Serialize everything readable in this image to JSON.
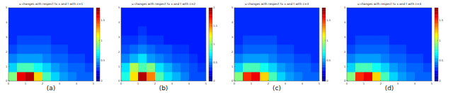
{
  "chart_data": [
    {
      "type": "heatmap",
      "title": "u changes with respect to x and t with ε=1",
      "caption": "(a)",
      "x": [
        0.25,
        0.75,
        1.25,
        1.75,
        2.25,
        2.75,
        3.25,
        3.75,
        4.25,
        4.75
      ],
      "y": [
        0.3125,
        0.9375,
        1.5625,
        2.1875,
        2.8125,
        3.4375,
        4.0625,
        4.6875
      ],
      "values": [
        [
          0.9,
          1.6,
          1.7,
          1.2,
          0.8,
          0.6,
          0.5,
          0.45,
          0.4,
          0.4
        ],
        [
          0.6,
          0.8,
          0.8,
          0.7,
          0.6,
          0.5,
          0.45,
          0.4,
          0.4,
          0.35
        ],
        [
          0.45,
          0.5,
          0.5,
          0.5,
          0.45,
          0.4,
          0.4,
          0.35,
          0.35,
          0.3
        ],
        [
          0.35,
          0.4,
          0.4,
          0.4,
          0.4,
          0.35,
          0.35,
          0.3,
          0.3,
          0.3
        ],
        [
          0.3,
          0.35,
          0.35,
          0.35,
          0.35,
          0.3,
          0.3,
          0.3,
          0.3,
          0.3
        ],
        [
          0.3,
          0.3,
          0.3,
          0.3,
          0.3,
          0.3,
          0.3,
          0.3,
          0.3,
          0.3
        ],
        [
          0.3,
          0.3,
          0.3,
          0.3,
          0.3,
          0.3,
          0.3,
          0.3,
          0.3,
          0.3
        ],
        [
          0.3,
          0.3,
          0.3,
          0.3,
          0.3,
          0.3,
          0.3,
          0.3,
          0.3,
          0.3
        ]
      ],
      "xlim": [
        0,
        5
      ],
      "ylim": [
        0,
        5
      ],
      "xticks": [
        0,
        1,
        2,
        3,
        4,
        5
      ],
      "yticks": [
        0,
        1,
        2,
        3,
        4,
        5
      ],
      "colorbar_range": [
        0,
        1.8
      ],
      "colorbar_ticks": [
        0,
        0.5,
        1,
        1.5
      ]
    },
    {
      "type": "heatmap",
      "title": "u changes with respect to x and t with ε=2",
      "caption": "(b)",
      "x": [
        0.25,
        0.75,
        1.25,
        1.75,
        2.25,
        2.75,
        3.25,
        3.75,
        4.25,
        4.75
      ],
      "y": [
        0.3125,
        0.9375,
        1.5625,
        2.1875,
        2.8125,
        3.4375,
        4.0625,
        4.6875
      ],
      "values": [
        [
          0.8,
          1.3,
          1.9,
          1.5,
          0.9,
          0.7,
          0.6,
          0.5,
          0.4,
          0.4
        ],
        [
          0.7,
          1.1,
          0.9,
          1.0,
          0.7,
          0.6,
          0.5,
          0.45,
          0.4,
          0.35
        ],
        [
          0.5,
          0.6,
          0.7,
          0.55,
          0.5,
          0.45,
          0.4,
          0.4,
          0.35,
          0.3
        ],
        [
          0.4,
          0.45,
          0.5,
          0.45,
          0.4,
          0.4,
          0.35,
          0.35,
          0.3,
          0.3
        ],
        [
          0.35,
          0.35,
          0.4,
          0.35,
          0.35,
          0.3,
          0.3,
          0.3,
          0.3,
          0.3
        ],
        [
          0.3,
          0.3,
          0.35,
          0.3,
          0.3,
          0.3,
          0.3,
          0.3,
          0.3,
          0.3
        ],
        [
          0.3,
          0.3,
          0.3,
          0.3,
          0.3,
          0.3,
          0.3,
          0.3,
          0.3,
          0.3
        ],
        [
          0.3,
          0.3,
          0.3,
          0.3,
          0.3,
          0.3,
          0.3,
          0.3,
          0.3,
          0.3
        ]
      ],
      "xlim": [
        0,
        5
      ],
      "ylim": [
        0,
        5
      ],
      "xticks": [
        0,
        1,
        2,
        3,
        4,
        5
      ],
      "yticks": [
        0,
        1,
        2,
        3,
        4,
        5
      ],
      "colorbar_range": [
        0,
        2
      ],
      "colorbar_ticks": [
        0,
        0.5,
        1,
        1.5,
        2
      ]
    },
    {
      "type": "heatmap",
      "title": "u changes with respect to x and t with ε=3",
      "caption": "(c)",
      "x": [
        0.25,
        0.75,
        1.25,
        1.75,
        2.25,
        2.75,
        3.25,
        3.75,
        4.25,
        4.75
      ],
      "y": [
        0.3125,
        0.9375,
        1.5625,
        2.1875,
        2.8125,
        3.4375,
        4.0625,
        4.6875
      ],
      "values": [
        [
          0.9,
          1.5,
          1.6,
          1.2,
          0.8,
          0.6,
          0.5,
          0.45,
          0.4,
          0.4
        ],
        [
          0.6,
          0.8,
          0.8,
          0.7,
          0.6,
          0.5,
          0.45,
          0.4,
          0.4,
          0.35
        ],
        [
          0.45,
          0.5,
          0.5,
          0.5,
          0.45,
          0.4,
          0.4,
          0.35,
          0.35,
          0.3
        ],
        [
          0.35,
          0.4,
          0.4,
          0.4,
          0.4,
          0.35,
          0.35,
          0.3,
          0.3,
          0.3
        ],
        [
          0.3,
          0.35,
          0.35,
          0.35,
          0.35,
          0.3,
          0.3,
          0.3,
          0.3,
          0.3
        ],
        [
          0.3,
          0.3,
          0.3,
          0.3,
          0.3,
          0.3,
          0.3,
          0.3,
          0.3,
          0.3
        ],
        [
          0.3,
          0.3,
          0.3,
          0.3,
          0.3,
          0.3,
          0.3,
          0.3,
          0.3,
          0.3
        ],
        [
          0.3,
          0.3,
          0.3,
          0.3,
          0.3,
          0.3,
          0.3,
          0.3,
          0.3,
          0.3
        ]
      ],
      "xlim": [
        0,
        5
      ],
      "ylim": [
        0,
        5
      ],
      "xticks": [
        0,
        1,
        2,
        3,
        4,
        5
      ],
      "yticks": [
        0,
        1,
        2,
        3,
        4,
        5
      ],
      "colorbar_range": [
        0,
        1.8
      ],
      "colorbar_ticks": [
        0,
        0.5,
        1,
        1.5
      ]
    },
    {
      "type": "heatmap",
      "title": "u changes with respect to x and t with ε=4",
      "caption": "(d)",
      "x": [
        0.25,
        0.75,
        1.25,
        1.75,
        2.25,
        2.75,
        3.25,
        3.75,
        4.25,
        4.75
      ],
      "y": [
        0.3125,
        0.9375,
        1.5625,
        2.1875,
        2.8125,
        3.4375,
        4.0625,
        4.6875
      ],
      "values": [
        [
          0.9,
          1.5,
          1.6,
          1.2,
          0.8,
          0.6,
          0.5,
          0.45,
          0.4,
          0.4
        ],
        [
          0.6,
          0.8,
          0.8,
          0.7,
          0.6,
          0.5,
          0.45,
          0.4,
          0.4,
          0.35
        ],
        [
          0.45,
          0.5,
          0.5,
          0.5,
          0.45,
          0.4,
          0.4,
          0.35,
          0.35,
          0.3
        ],
        [
          0.35,
          0.4,
          0.4,
          0.4,
          0.4,
          0.35,
          0.35,
          0.3,
          0.3,
          0.3
        ],
        [
          0.3,
          0.35,
          0.35,
          0.35,
          0.35,
          0.3,
          0.3,
          0.3,
          0.3,
          0.3
        ],
        [
          0.3,
          0.3,
          0.3,
          0.3,
          0.3,
          0.3,
          0.3,
          0.3,
          0.3,
          0.3
        ],
        [
          0.3,
          0.3,
          0.3,
          0.3,
          0.3,
          0.3,
          0.3,
          0.3,
          0.3,
          0.3
        ],
        [
          0.3,
          0.3,
          0.3,
          0.3,
          0.3,
          0.3,
          0.3,
          0.3,
          0.3,
          0.3
        ]
      ],
      "xlim": [
        0,
        5
      ],
      "ylim": [
        0,
        5
      ],
      "xticks": [
        0,
        1,
        2,
        3,
        4,
        5
      ],
      "yticks": [
        0,
        1,
        2,
        3,
        4,
        5
      ],
      "colorbar_range": [
        0,
        1.8
      ],
      "colorbar_ticks": [
        0,
        0.5,
        1,
        1.5
      ]
    }
  ]
}
